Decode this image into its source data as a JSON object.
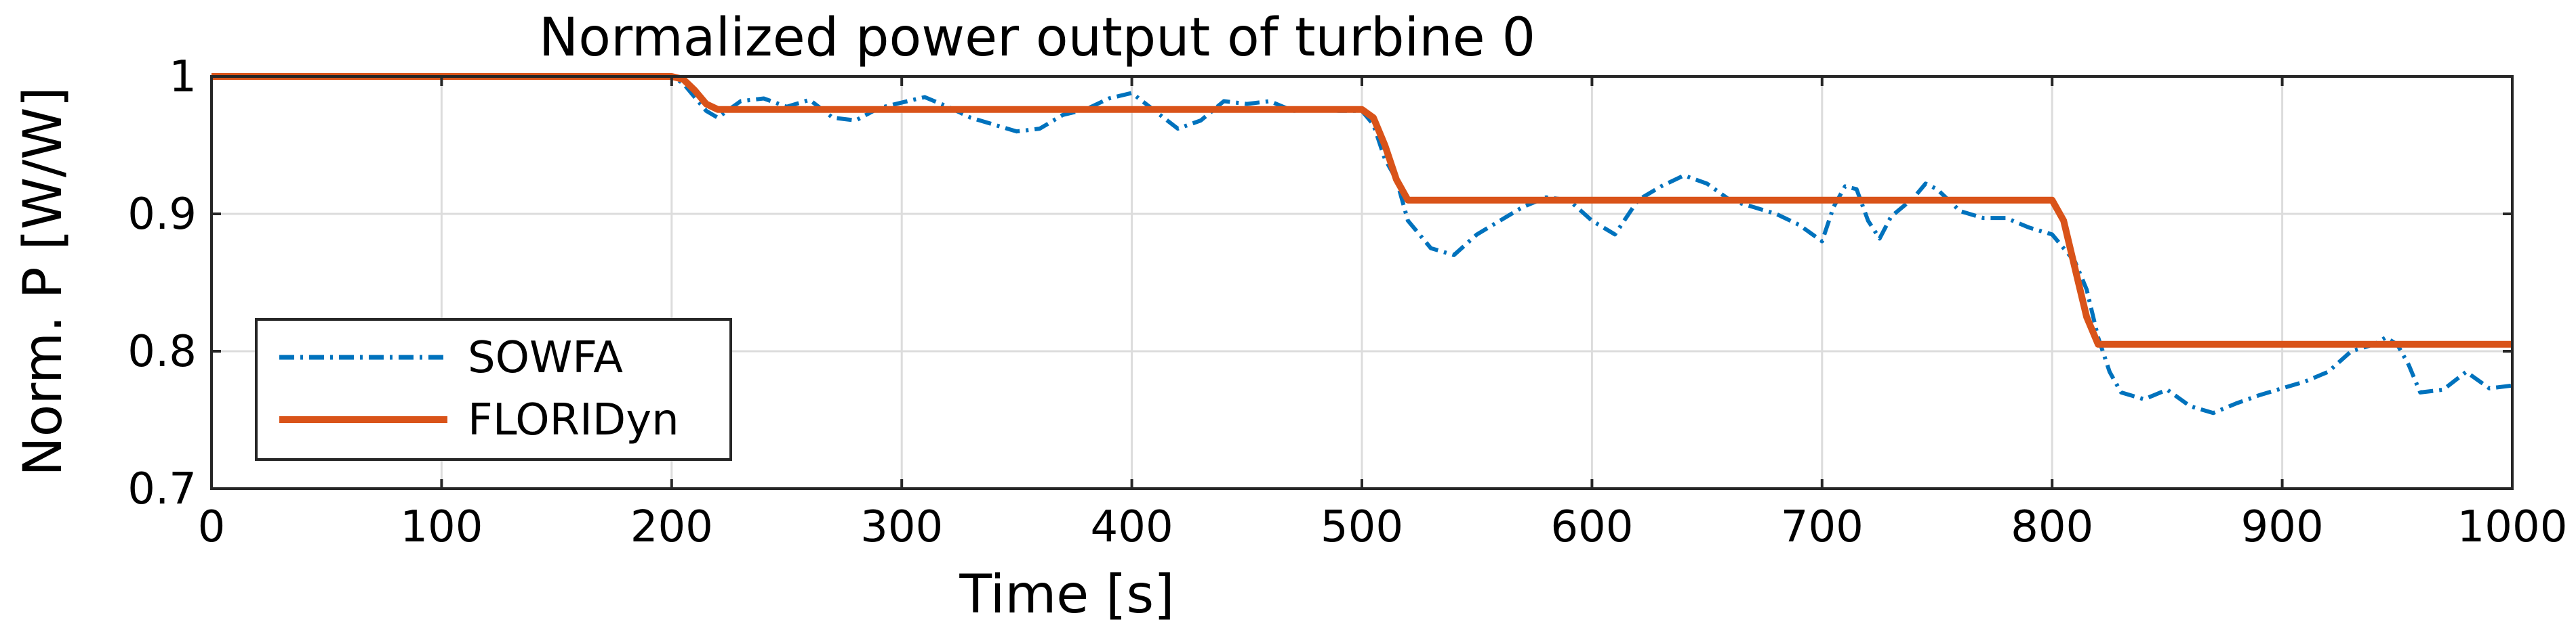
{
  "chart_data": {
    "type": "line",
    "title": "Normalized power output of turbine 0",
    "xlabel": "Time [s]",
    "ylabel": "Norm. P [W/W]",
    "xlim": [
      0,
      1000
    ],
    "ylim": [
      0.7,
      1.0
    ],
    "xticks": [
      0,
      100,
      200,
      300,
      400,
      500,
      600,
      700,
      800,
      900,
      1000
    ],
    "xtick_labels": [
      "0",
      "100",
      "200",
      "300",
      "400",
      "500",
      "600",
      "700",
      "800",
      "900",
      "1000"
    ],
    "yticks": [
      0.7,
      0.8,
      0.9,
      1.0
    ],
    "ytick_labels": [
      "0.7",
      "0.8",
      "0.9",
      "1"
    ],
    "grid": true,
    "legend_position": "bottom-left",
    "series": [
      {
        "name": "SOWFA",
        "color": "#0072BD",
        "style": "dash-dot",
        "x": [
          0,
          200,
          205,
          210,
          215,
          220,
          230,
          240,
          250,
          260,
          270,
          280,
          290,
          300,
          310,
          320,
          330,
          340,
          350,
          360,
          370,
          380,
          390,
          400,
          410,
          420,
          430,
          440,
          450,
          460,
          470,
          480,
          490,
          500,
          505,
          510,
          515,
          520,
          525,
          530,
          540,
          550,
          560,
          570,
          580,
          590,
          600,
          610,
          620,
          630,
          640,
          650,
          660,
          670,
          680,
          690,
          700,
          705,
          710,
          715,
          720,
          725,
          730,
          740,
          745,
          750,
          760,
          770,
          780,
          790,
          800,
          805,
          810,
          815,
          820,
          825,
          830,
          840,
          850,
          860,
          870,
          880,
          890,
          900,
          910,
          920,
          930,
          940,
          945,
          950,
          955,
          960,
          970,
          980,
          990,
          1000
        ],
        "y": [
          1.0,
          1.0,
          0.995,
          0.985,
          0.975,
          0.97,
          0.982,
          0.984,
          0.978,
          0.983,
          0.97,
          0.968,
          0.977,
          0.981,
          0.985,
          0.978,
          0.97,
          0.965,
          0.96,
          0.962,
          0.972,
          0.976,
          0.984,
          0.988,
          0.975,
          0.962,
          0.968,
          0.982,
          0.98,
          0.982,
          0.975,
          0.976,
          0.975,
          0.975,
          0.965,
          0.94,
          0.925,
          0.895,
          0.885,
          0.875,
          0.87,
          0.885,
          0.895,
          0.905,
          0.912,
          0.91,
          0.895,
          0.885,
          0.91,
          0.92,
          0.928,
          0.922,
          0.91,
          0.905,
          0.9,
          0.892,
          0.88,
          0.905,
          0.92,
          0.918,
          0.895,
          0.882,
          0.898,
          0.912,
          0.922,
          0.918,
          0.902,
          0.897,
          0.897,
          0.89,
          0.885,
          0.875,
          0.865,
          0.845,
          0.81,
          0.785,
          0.77,
          0.765,
          0.772,
          0.76,
          0.755,
          0.762,
          0.768,
          0.773,
          0.778,
          0.785,
          0.8,
          0.805,
          0.81,
          0.805,
          0.79,
          0.77,
          0.772,
          0.785,
          0.773,
          0.775
        ]
      },
      {
        "name": "FLORIDyn",
        "color": "#D95319",
        "style": "solid",
        "x": [
          0,
          200,
          205,
          210,
          215,
          220,
          500,
          505,
          510,
          515,
          520,
          800,
          805,
          810,
          815,
          820,
          1000
        ],
        "y": [
          1.0,
          1.0,
          0.998,
          0.99,
          0.98,
          0.976,
          0.976,
          0.97,
          0.95,
          0.925,
          0.91,
          0.91,
          0.895,
          0.86,
          0.825,
          0.805,
          0.805
        ]
      }
    ]
  }
}
